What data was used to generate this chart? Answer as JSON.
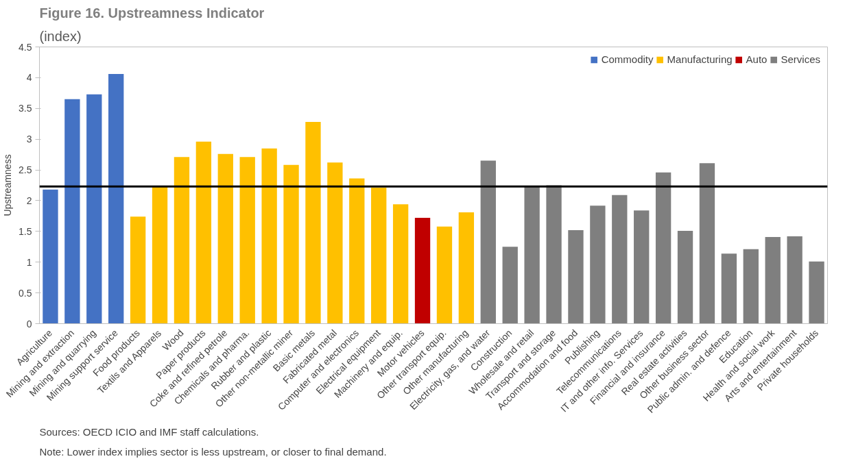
{
  "chart_data": {
    "type": "bar",
    "title": "Figure 16. Upstreamness Indicator",
    "subtitle": "(index)",
    "ylabel": "Upstreamness",
    "categories": [
      "Agriculture",
      "Mining and extraction",
      "Mining and quarrying",
      "Mining support service",
      "Food products",
      "Textils and Apparels",
      "Wood",
      "Paper products",
      "Coke and refined petrole",
      "Chemicals and pharma.",
      "Rubber and plastic",
      "Other non-metallic miner",
      "Basic metals",
      "Fabricated metal",
      "Computer and electronics",
      "Electrical equipment",
      "Machinery and equip.",
      "Motor vehicles",
      "Other transport equip.",
      "Other manufacturing",
      "Electricity, gas, and water",
      "Construction",
      "Wholesale and retail",
      "Transport and storage",
      "Accommodation and food",
      "Publishing",
      "Telecommunications",
      "IT and other info. Services",
      "Financial and insurance",
      "Real estate activities",
      "Other business sector",
      "Public admin. and defence",
      "Education",
      "Health and social work",
      "Arts and entertainment",
      "Private households"
    ],
    "series": [
      {
        "name": "Commodity",
        "color": "#4472c4",
        "values": [
          2.18,
          3.65,
          3.73,
          4.06,
          null,
          null,
          null,
          null,
          null,
          null,
          null,
          null,
          null,
          null,
          null,
          null,
          null,
          null,
          null,
          null,
          null,
          null,
          null,
          null,
          null,
          null,
          null,
          null,
          null,
          null,
          null,
          null,
          null,
          null,
          null,
          null
        ]
      },
      {
        "name": "Manufacturing",
        "color": "#ffc000",
        "values": [
          null,
          null,
          null,
          null,
          1.74,
          2.24,
          2.71,
          2.96,
          2.76,
          2.71,
          2.85,
          2.58,
          3.28,
          2.62,
          2.36,
          2.21,
          1.94,
          null,
          1.58,
          1.81,
          null,
          null,
          null,
          null,
          null,
          null,
          null,
          null,
          null,
          null,
          null,
          null,
          null,
          null,
          null,
          null
        ]
      },
      {
        "name": "Auto",
        "color": "#c00000",
        "values": [
          null,
          null,
          null,
          null,
          null,
          null,
          null,
          null,
          null,
          null,
          null,
          null,
          null,
          null,
          null,
          null,
          null,
          1.72,
          null,
          null,
          null,
          null,
          null,
          null,
          null,
          null,
          null,
          null,
          null,
          null,
          null,
          null,
          null,
          null,
          null,
          null
        ]
      },
      {
        "name": "Services",
        "color": "#7f7f7f",
        "values": [
          null,
          null,
          null,
          null,
          null,
          null,
          null,
          null,
          null,
          null,
          null,
          null,
          null,
          null,
          null,
          null,
          null,
          null,
          null,
          null,
          2.65,
          1.25,
          2.24,
          2.25,
          1.52,
          1.92,
          2.09,
          1.84,
          2.46,
          1.51,
          2.61,
          1.14,
          1.21,
          1.41,
          1.42,
          1.01
        ]
      }
    ],
    "ylim": [
      0,
      4.5
    ],
    "yticks": [
      0,
      0.5,
      1,
      1.5,
      2,
      2.5,
      3,
      3.5,
      4,
      4.5
    ],
    "ref_lines": [
      {
        "axis": "y",
        "value": 2.23,
        "color": "#000000"
      }
    ],
    "grid": false,
    "legend": "top right",
    "annotations": [
      "Sources: OECD ICIO and IMF staff calculations.",
      "Note: Lower index implies sector is less upstream, or closer to final demand."
    ]
  }
}
